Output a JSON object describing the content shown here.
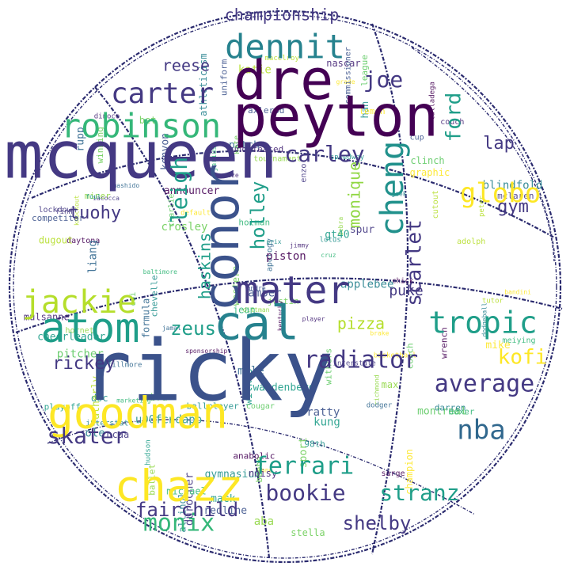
{
  "palette": [
    "#440154",
    "#3b528b",
    "#21918c",
    "#5ec962",
    "#fde725",
    "#31688e",
    "#35b779",
    "#482878",
    "#26828e",
    "#90d743",
    "#1f9e89",
    "#6ece58",
    "#b5de2b",
    "#443983"
  ],
  "words": [
    {
      "text": "ricky",
      "w": 100,
      "c": 1
    },
    {
      "text": "mcqueen",
      "w": 80,
      "c": 13
    },
    {
      "text": "peyton",
      "w": 78,
      "c": 0
    },
    {
      "text": "dre",
      "w": 74,
      "c": 0
    },
    {
      "text": "conor",
      "w": 68,
      "c": 1
    },
    {
      "text": "cal",
      "w": 60,
      "c": 8
    },
    {
      "text": "goodman",
      "w": 56,
      "c": 4
    },
    {
      "text": "chazz",
      "w": 54,
      "c": 4
    },
    {
      "text": "atom",
      "w": 52,
      "c": 10
    },
    {
      "text": "mater",
      "w": 48,
      "c": 13
    },
    {
      "text": "dennit",
      "w": 44,
      "c": 8
    },
    {
      "text": "robinson",
      "w": 44,
      "c": 6
    },
    {
      "text": "cheng",
      "w": 42,
      "c": 2
    },
    {
      "text": "jackie",
      "w": 40,
      "c": 12
    },
    {
      "text": "tropic",
      "w": 38,
      "c": 10
    },
    {
      "text": "carter",
      "w": 36,
      "c": 13
    },
    {
      "text": "globo",
      "w": 34,
      "c": 4
    },
    {
      "text": "nba",
      "w": 34,
      "c": 5
    },
    {
      "text": "average",
      "w": 32,
      "c": 13
    },
    {
      "text": "monix",
      "w": 32,
      "c": 6
    },
    {
      "text": "ferrari",
      "w": 30,
      "c": 10
    },
    {
      "text": "bookie",
      "w": 30,
      "c": 13
    },
    {
      "text": "skater",
      "w": 30,
      "c": 13
    },
    {
      "text": "radiator",
      "w": 30,
      "c": 13
    },
    {
      "text": "stranz",
      "w": 28,
      "c": 10
    },
    {
      "text": "leigh",
      "w": 28,
      "c": 10
    },
    {
      "text": "joe",
      "w": 28,
      "c": 13
    },
    {
      "text": "carley",
      "w": 28,
      "c": 13
    },
    {
      "text": "kofi",
      "w": 28,
      "c": 4
    },
    {
      "text": "ford",
      "w": 28,
      "c": 10
    },
    {
      "text": "scarlet",
      "w": 28,
      "c": 13
    },
    {
      "text": "holley",
      "w": 26,
      "c": 10
    },
    {
      "text": "fairchild",
      "w": 26,
      "c": 13
    },
    {
      "text": "shelby",
      "w": 26,
      "c": 13
    },
    {
      "text": "zeus",
      "w": 26,
      "c": 10
    },
    {
      "text": "rickey",
      "w": 24,
      "c": 13
    },
    {
      "text": "tuohy",
      "w": 24,
      "c": 13
    },
    {
      "text": "lap",
      "w": 24,
      "c": 13
    },
    {
      "text": "gym",
      "w": 24,
      "c": 13
    },
    {
      "text": "haskins",
      "w": 24,
      "c": 10
    },
    {
      "text": "championship",
      "w": 22,
      "c": 13
    },
    {
      "text": "reese",
      "w": 22,
      "c": 13
    },
    {
      "text": "pizza",
      "w": 22,
      "c": 12
    },
    {
      "text": "monique",
      "w": 20,
      "c": 9
    },
    {
      "text": "puke",
      "w": 20,
      "c": 13
    }
  ],
  "small_words": [
    "kentucky",
    "andre",
    "lotus",
    "league",
    "lemon",
    "liang",
    "jean",
    "undefeated",
    "interstate",
    "ballet",
    "gt40",
    "winning",
    "dugout",
    "mclaren",
    "anabolic",
    "kenyon",
    "u00fcndapp",
    "coach",
    "default",
    "dodger",
    "cruz",
    "noisy",
    "ole",
    "max",
    "hudson",
    "sport",
    "macelroy",
    "finn",
    "talladega",
    "commissioner",
    "prix",
    "cougar",
    "basketball",
    "mashido",
    "holman",
    "jimmy",
    "applebee",
    "aba",
    "waldenberg",
    "stella",
    "katie",
    "spur",
    "piston",
    "competitor",
    "han",
    "coi",
    "bandini",
    "fillmore",
    "michael",
    "couch",
    "dodgeball",
    "tournament",
    "playoff",
    "kate",
    "fatherly",
    "enzo",
    "chick",
    "redline",
    "doc",
    "charlie",
    "mike",
    "jamal",
    "meiying",
    "player",
    "darren",
    "debra",
    "mack",
    "beebe",
    "peter",
    "lockdown",
    "wrench",
    "axlerod",
    "chevelle",
    "withers",
    "grade",
    "mile",
    "boxer",
    "nascar",
    "allinol",
    "richmond",
    "foul",
    "justin",
    "knockout",
    "iacocca",
    "daytona",
    "amber",
    "ballplayer",
    "clinch",
    "jane",
    "patch",
    "marketing",
    "eze",
    "geek",
    "dittman",
    "wilkes",
    "crosley",
    "adolph",
    "ncaa",
    "sponsorship",
    "uniform",
    "speedway",
    "cobra",
    "champion",
    "formula",
    "baltimore",
    "mulsanne",
    "blindfold",
    "miner",
    "kung",
    "bet",
    "cutout",
    "durocher",
    "announcer",
    "cup",
    "98th",
    "montreal",
    "brake",
    "apology",
    "jarius",
    "dinoco",
    "athleticism",
    "hornet",
    "cheerleader",
    "western",
    "tutor",
    "interstate",
    "sarge",
    "ratty",
    "gymnasium",
    "pitcher",
    "graphic",
    "rupp"
  ],
  "outline_stroke": "#2a2a6e"
}
